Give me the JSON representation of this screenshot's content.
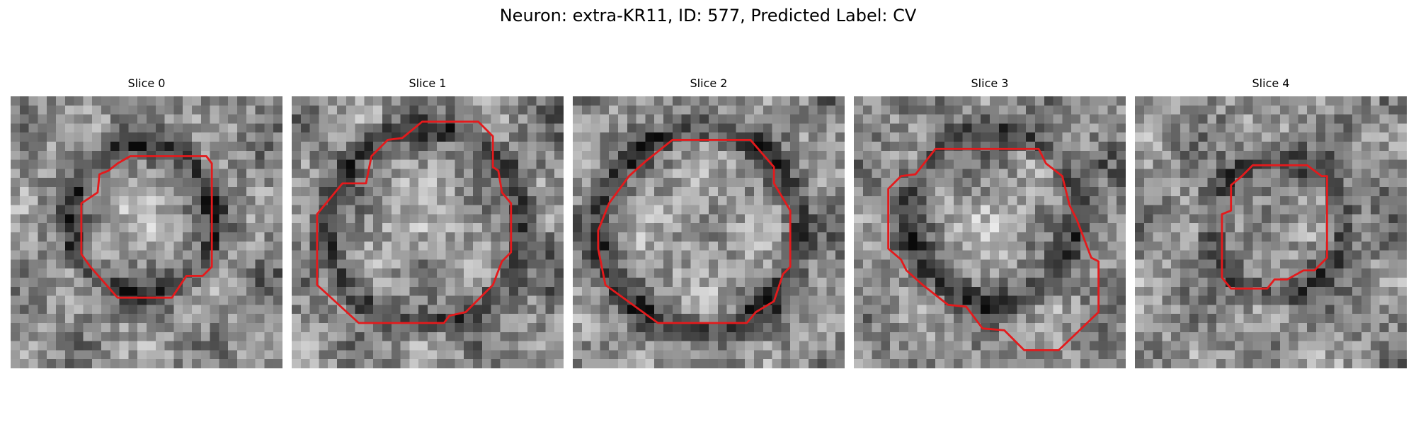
{
  "figure": {
    "title": "Neuron: extra-KR11, ID: 577, Predicted Label: CV"
  },
  "contour_color": "#e41a1c",
  "slices": [
    {
      "title": "Slice 0",
      "image": "grayscale-microscopy-patch",
      "overlay": "red-contour-outline"
    },
    {
      "title": "Slice 1",
      "image": "grayscale-microscopy-patch",
      "overlay": "red-contour-outline"
    },
    {
      "title": "Slice 2",
      "image": "grayscale-microscopy-patch",
      "overlay": "red-contour-outline"
    },
    {
      "title": "Slice 3",
      "image": "grayscale-microscopy-patch",
      "overlay": "red-contour-outline"
    },
    {
      "title": "Slice 4",
      "image": "grayscale-microscopy-patch",
      "overlay": "red-contour-outline"
    }
  ]
}
